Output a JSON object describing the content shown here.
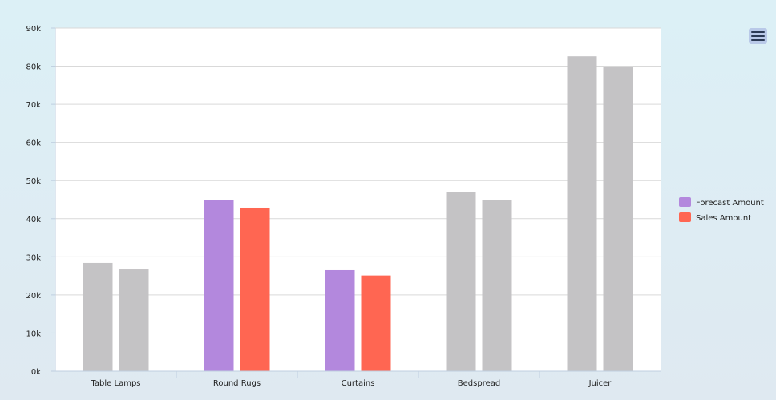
{
  "chart_data": {
    "type": "bar",
    "categories": [
      "Table Lamps",
      "Round Rugs",
      "Curtains",
      "Bedspread",
      "Juicer"
    ],
    "series": [
      {
        "name": "Forecast Amount",
        "color": "#b388dd",
        "values": [
          28400,
          44800,
          26500,
          47100,
          82600
        ]
      },
      {
        "name": "Sales Amount",
        "color": "#ff6652",
        "values": [
          26700,
          42900,
          25100,
          44800,
          79800
        ]
      }
    ],
    "highlighted_categories": [
      "Round Rugs",
      "Curtains"
    ],
    "muted_color": "#c4c3c5",
    "y_ticks": [
      "0k",
      "10k",
      "20k",
      "30k",
      "40k",
      "50k",
      "60k",
      "70k",
      "80k",
      "90k"
    ],
    "ylim": [
      0,
      90000
    ],
    "y_step": 10000,
    "grid": true,
    "legend_position": "right",
    "title": "",
    "xlabel": "",
    "ylabel": ""
  },
  "toolbar": {
    "menu_icon": "hamburger-menu-icon"
  }
}
